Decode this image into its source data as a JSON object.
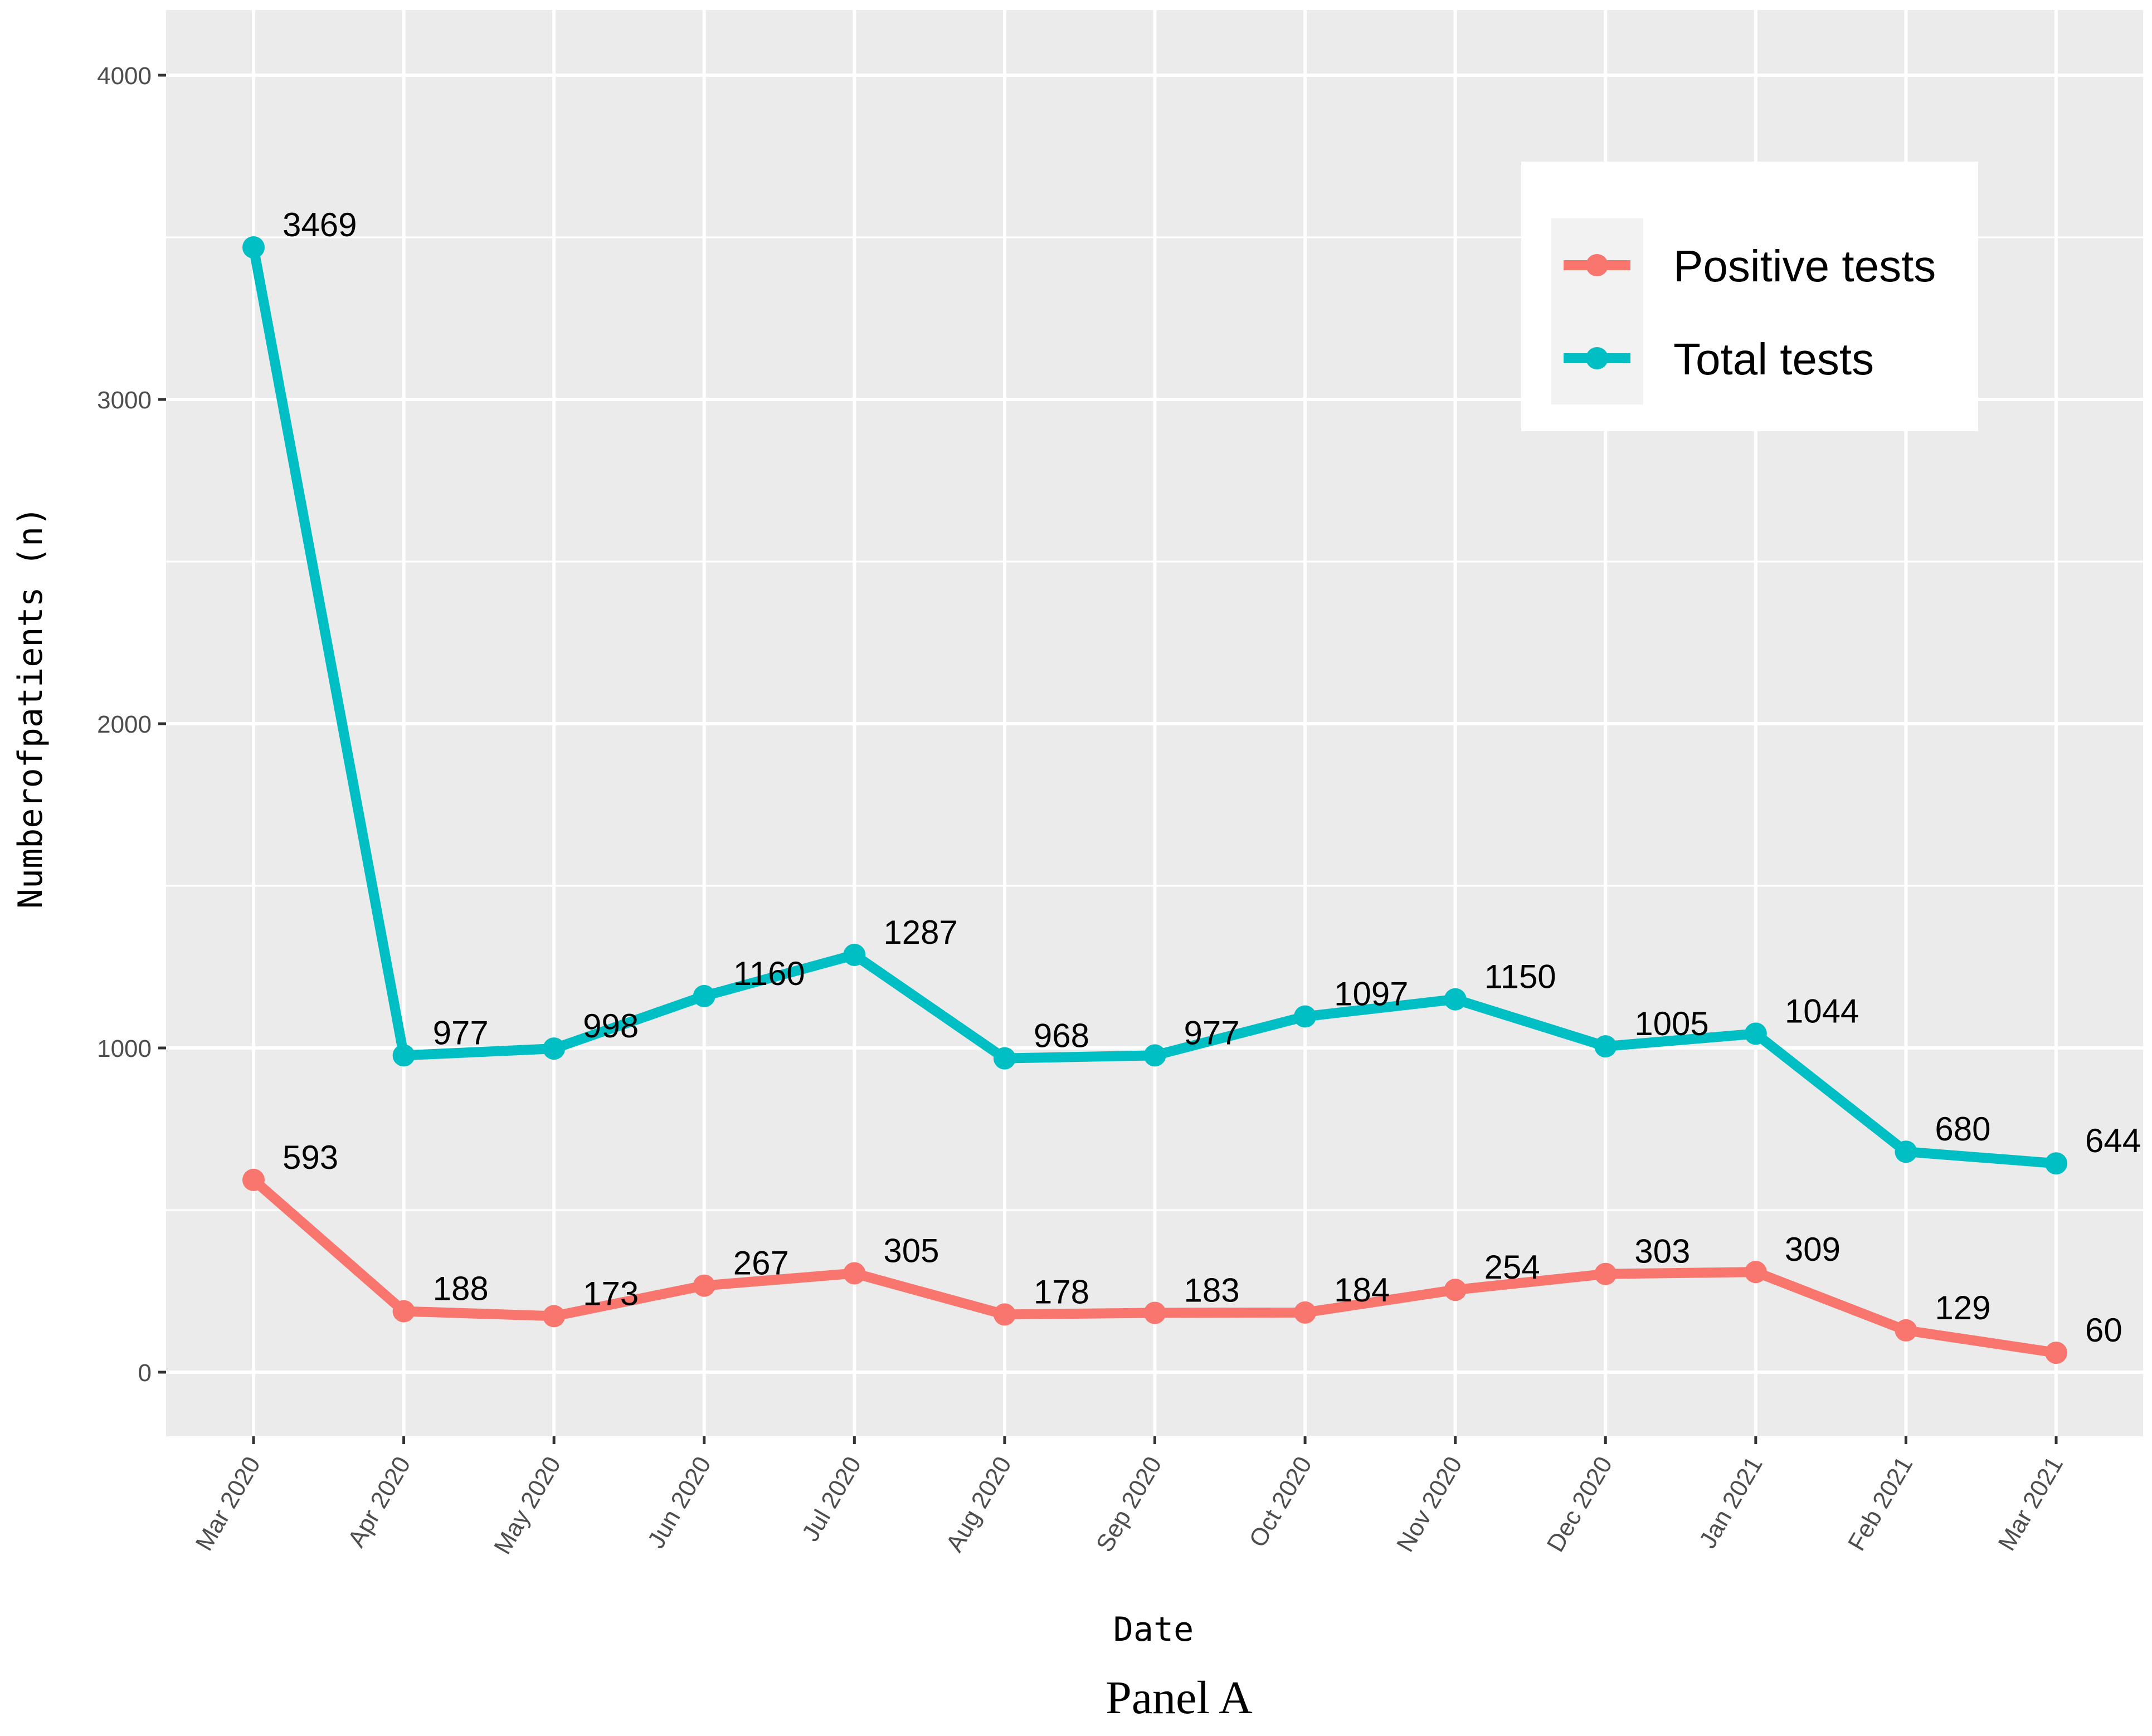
{
  "chart_data": {
    "type": "line",
    "categories": [
      "Mar 2020",
      "Apr 2020",
      "May 2020",
      "Jun 2020",
      "Jul 2020",
      "Aug 2020",
      "Sep 2020",
      "Oct 2020",
      "Nov 2020",
      "Dec 2020",
      "Jan 2021",
      "Feb 2021",
      "Mar 2021"
    ],
    "series": [
      {
        "name": "Positive tests",
        "color": "#F8766D",
        "values": [
          593,
          188,
          173,
          267,
          305,
          178,
          183,
          184,
          254,
          303,
          309,
          129,
          60
        ]
      },
      {
        "name": "Total tests",
        "color": "#00BFC4",
        "values": [
          3469,
          977,
          998,
          1160,
          1287,
          968,
          977,
          1097,
          1150,
          1005,
          1044,
          680,
          644
        ]
      }
    ],
    "xlabel": "Date",
    "ylabel": "Numberofpatients (n)",
    "ylim": [
      -200,
      4200
    ],
    "yticks": [
      0,
      1000,
      2000,
      3000,
      4000
    ],
    "grid": true,
    "panel_background": "#EBEBEB",
    "legend_position": "top-right",
    "data_labels": true
  },
  "caption": "Panel A"
}
